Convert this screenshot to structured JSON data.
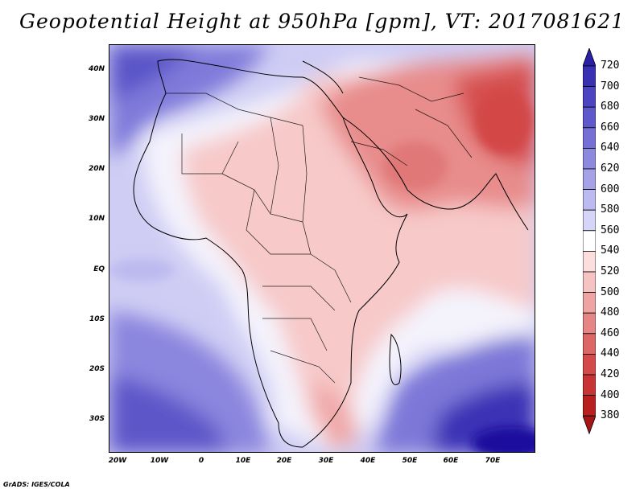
{
  "title": "Geopotential Height at 950hPa [gpm], VT: 2017081621",
  "credit": "GrADS: IGES/COLA",
  "y_labels": [
    "40N",
    "30N",
    "20N",
    "10N",
    "EQ",
    "10S",
    "20S",
    "30S"
  ],
  "x_labels": [
    "20W",
    "10W",
    "0",
    "10E",
    "20E",
    "30E",
    "40E",
    "50E",
    "60E",
    "70E"
  ],
  "colorbar": {
    "labels": [
      "720",
      "700",
      "680",
      "660",
      "640",
      "620",
      "600",
      "580",
      "560",
      "540",
      "520",
      "500",
      "480",
      "460",
      "440",
      "420",
      "400",
      "380"
    ],
    "colors": [
      "#2a1fa6",
      "#3a30b4",
      "#4c44c0",
      "#5f58cc",
      "#7670d6",
      "#8d89df",
      "#a5a2e8",
      "#bcbaf0",
      "#d6d5f7",
      "#ffffff",
      "#fcdede",
      "#f6c3c3",
      "#efa4a4",
      "#e68585",
      "#dd6666",
      "#d44a4a",
      "#c83333",
      "#b82020",
      "#a51515"
    ]
  }
}
